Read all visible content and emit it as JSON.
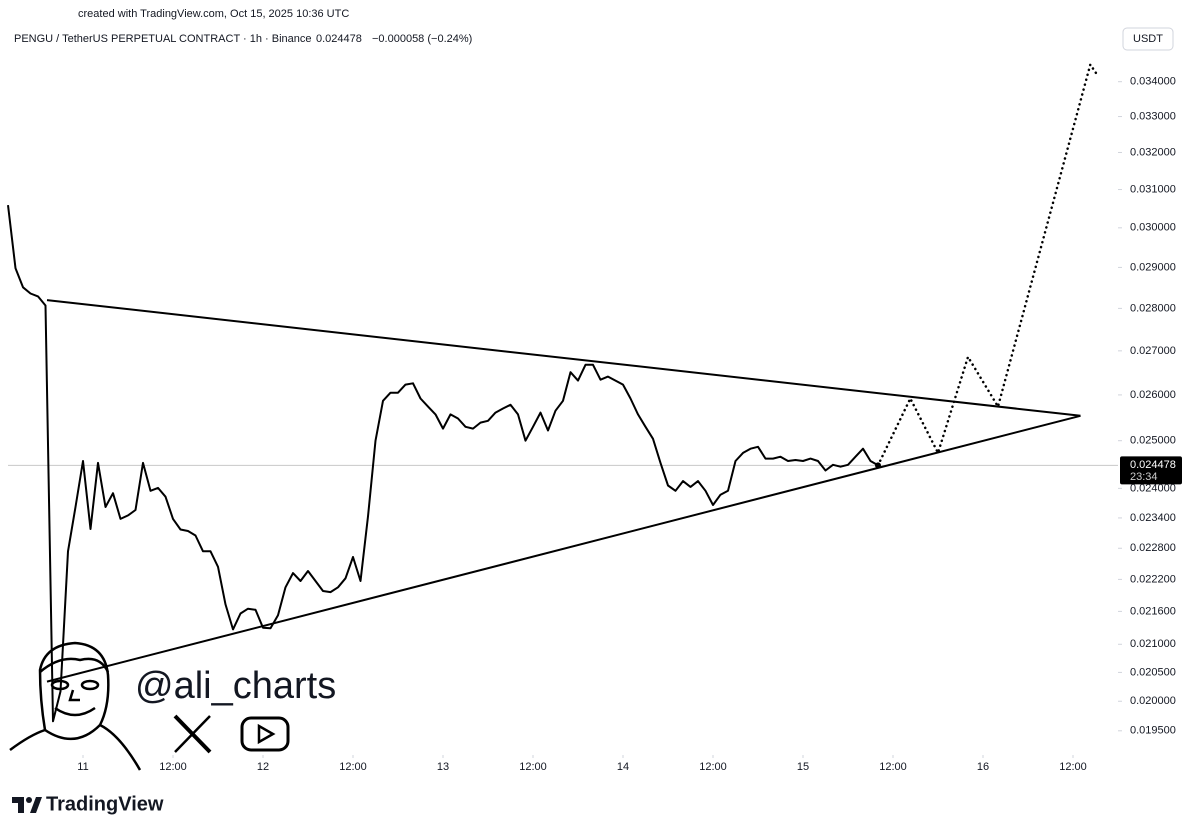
{
  "created": "created with TradingView.com, Oct 15, 2025 10:36 UTC",
  "header": {
    "symbol": "PENGU / TetherUS PERPETUAL CONTRACT · 1h · Binance",
    "price": 0.024478,
    "change": "−0.000058 (−0.24%)",
    "currency": "USDT"
  },
  "price_label": {
    "value": 0.024478,
    "countdown": "23:34"
  },
  "watermark": "@ali_charts",
  "brand": "TradingView",
  "chart_data": {
    "type": "line",
    "log_scale": true,
    "grid": false,
    "xlim": [
      -10,
      138
    ],
    "ylim": [
      0.0191,
      0.0356
    ],
    "xticks": [
      {
        "value": 0,
        "label": "11"
      },
      {
        "value": 12,
        "label": "12:00"
      },
      {
        "value": 24,
        "label": "12"
      },
      {
        "value": 36,
        "label": "12:00"
      },
      {
        "value": 48,
        "label": "13"
      },
      {
        "value": 60,
        "label": "12:00"
      },
      {
        "value": 72,
        "label": "14"
      },
      {
        "value": 84,
        "label": "12:00"
      },
      {
        "value": 96,
        "label": "15"
      },
      {
        "value": 108,
        "label": "12:00"
      },
      {
        "value": 120,
        "label": "16"
      },
      {
        "value": 132,
        "label": "12:00"
      }
    ],
    "yticks": [
      {
        "value": 0.0195,
        "label": "0.019500"
      },
      {
        "value": 0.02,
        "label": "0.020000"
      },
      {
        "value": 0.0205,
        "label": "0.020500"
      },
      {
        "value": 0.021,
        "label": "0.021000"
      },
      {
        "value": 0.0216,
        "label": "0.021600"
      },
      {
        "value": 0.0222,
        "label": "0.022200"
      },
      {
        "value": 0.0228,
        "label": "0.022800"
      },
      {
        "value": 0.0234,
        "label": "0.023400"
      },
      {
        "value": 0.024,
        "label": "0.024000"
      },
      {
        "value": 0.025,
        "label": "0.025000"
      },
      {
        "value": 0.026,
        "label": "0.026000"
      },
      {
        "value": 0.027,
        "label": "0.027000"
      },
      {
        "value": 0.028,
        "label": "0.028000"
      },
      {
        "value": 0.029,
        "label": "0.029000"
      },
      {
        "value": 0.03,
        "label": "0.030000"
      },
      {
        "value": 0.031,
        "label": "0.031000"
      },
      {
        "value": 0.032,
        "label": "0.032000"
      },
      {
        "value": 0.033,
        "label": "0.033000"
      },
      {
        "value": 0.034,
        "label": "0.034000"
      }
    ],
    "series": [
      {
        "color": "#000000",
        "style": "solid",
        "x": [
          -10,
          -9,
          -8,
          -7,
          -6,
          -5,
          -4,
          -3,
          -2,
          -1,
          0,
          1,
          2,
          3,
          4,
          5,
          6,
          7,
          8,
          9,
          10,
          11,
          12,
          13,
          14,
          15,
          16,
          17,
          18,
          19,
          20,
          21,
          22,
          23,
          24,
          25,
          26,
          27,
          28,
          29,
          30,
          31,
          32,
          33,
          34,
          35,
          36,
          37,
          38,
          39,
          40,
          41,
          42,
          43,
          44,
          45,
          46,
          47,
          48,
          49,
          50,
          51,
          52,
          53,
          54,
          55,
          56,
          57,
          58,
          59,
          60,
          61,
          62,
          63,
          64,
          65,
          66,
          67,
          68,
          69,
          70,
          71,
          72,
          73,
          74,
          75,
          76,
          77,
          78,
          79,
          80,
          81,
          82,
          83,
          84,
          85,
          86,
          87,
          88,
          89,
          90,
          91,
          92,
          93,
          94,
          95,
          96,
          97,
          98,
          99,
          100,
          101,
          102,
          103,
          104,
          105,
          106
        ],
        "values": [
          0.03059,
          0.02898,
          0.02851,
          0.02836,
          0.02829,
          0.02807,
          0.01966,
          0.02017,
          0.02274,
          0.02362,
          0.02457,
          0.02318,
          0.02453,
          0.02362,
          0.0239,
          0.02338,
          0.02345,
          0.02356,
          0.02453,
          0.02395,
          0.02401,
          0.02383,
          0.02338,
          0.02317,
          0.02314,
          0.02305,
          0.02274,
          0.02274,
          0.02244,
          0.02173,
          0.02127,
          0.02156,
          0.02165,
          0.02163,
          0.0213,
          0.02129,
          0.02153,
          0.02205,
          0.02232,
          0.02217,
          0.02236,
          0.02217,
          0.02198,
          0.02196,
          0.02205,
          0.02222,
          0.02263,
          0.02217,
          0.02343,
          0.025,
          0.02587,
          0.02605,
          0.02605,
          0.02623,
          0.02626,
          0.02592,
          0.02574,
          0.02557,
          0.02526,
          0.02557,
          0.02548,
          0.0253,
          0.02526,
          0.02539,
          0.02543,
          0.02561,
          0.0257,
          0.02578,
          0.02557,
          0.025,
          0.0253,
          0.02561,
          0.02522,
          0.02565,
          0.02587,
          0.02651,
          0.02632,
          0.02668,
          0.02668,
          0.02634,
          0.02641,
          0.02632,
          0.02623,
          0.02592,
          0.02557,
          0.0253,
          0.02504,
          0.02453,
          0.02406,
          0.02395,
          0.02415,
          0.02403,
          0.02415,
          0.02395,
          0.02366,
          0.02387,
          0.02395,
          0.02457,
          0.02474,
          0.02483,
          0.02487,
          0.02462,
          0.02462,
          0.02466,
          0.02457,
          0.02459,
          0.02457,
          0.02462,
          0.02457,
          0.02437,
          0.02449,
          0.02445,
          0.02449,
          0.02466,
          0.02483,
          0.02457,
          0.024478
        ]
      },
      {
        "color": "#000000",
        "style": "solid",
        "x": [
          -4.8,
          133
        ],
        "values": [
          0.0282,
          0.02554
        ]
      },
      {
        "color": "#000000",
        "style": "solid",
        "x": [
          -4.8,
          133
        ],
        "values": [
          0.02034,
          0.02554
        ]
      },
      {
        "color": "#000000",
        "style": "dotted",
        "x": [
          106,
          110.3,
          114,
          118,
          122,
          134.3,
          135.2
        ],
        "values": [
          0.024478,
          0.02592,
          0.02474,
          0.02686,
          0.02574,
          0.0345,
          0.03421
        ]
      }
    ]
  }
}
